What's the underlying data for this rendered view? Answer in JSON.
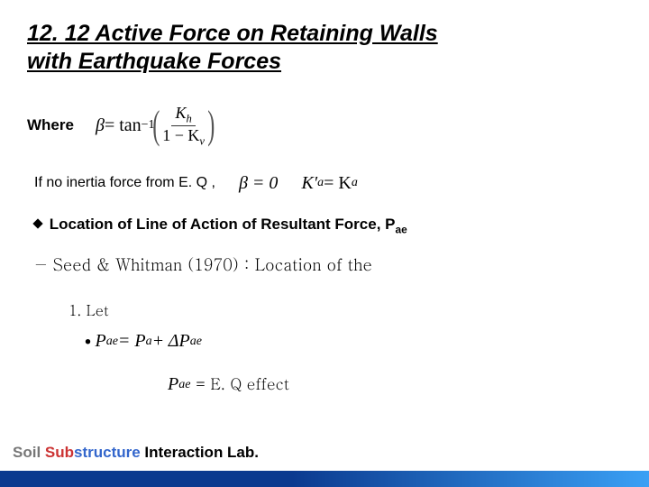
{
  "title_line1": "12. 12 Active Force on Retaining Walls",
  "title_line2": "with Earthquake Forces",
  "where_label": "Where",
  "beta_formula": {
    "lhs_beta": "β",
    "eq": " = tan",
    "sup": "−1",
    "num": "K",
    "num_sub": "h",
    "den_prefix": "1 − K",
    "den_sub": "v"
  },
  "noinertia_text": "If no inertia force from E. Q ,",
  "beta_zero": "β = 0",
  "kprime": "K′",
  "kprime_sub_a": "a",
  "eq_text": " = K",
  "location_heading_prefix": "Location of Line of Action of Resultant Force, P",
  "location_heading_sub": "ae",
  "seed_text": "−  Seed & Whitman (1970) : Location of the",
  "let_text": "1.  Let",
  "pae_lhs": "P",
  "pae_lhs_sub": "ae",
  "pae_mid": " = P",
  "pae_mid_sub": "a",
  "pae_plus": " + ΔP",
  "pae_plus_sub": "ae",
  "effect_lead": "P",
  "effect_sub": "ae",
  "effect_text": "  = E. Q  effect",
  "footer": {
    "soil": "Soil ",
    "sub1": "Sub",
    "sub2": "structure",
    "rest": " Interaction Lab."
  },
  "colors": {
    "title": "#000000",
    "bar_dark": "#0b3a8f",
    "bar_light": "#3aa0f5",
    "soil": "#777777",
    "sub_red": "#cc3333",
    "sub_blue": "#3366cc"
  }
}
